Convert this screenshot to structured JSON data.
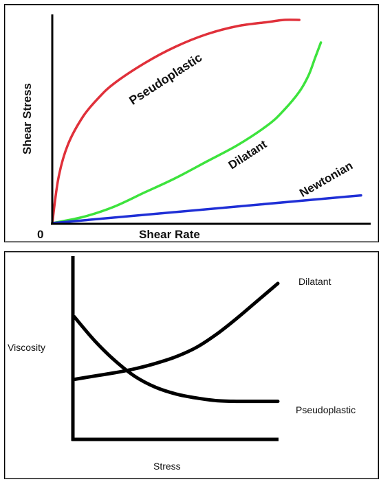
{
  "chart_data": [
    {
      "type": "line",
      "xlabel": "Shear Rate",
      "ylabel": "Shear Stress",
      "origin_label": "0",
      "x_range": [
        0,
        100
      ],
      "y_range": [
        0,
        100
      ],
      "grid": false,
      "legend": "none (curves labeled inline)",
      "series": [
        {
          "name": "Pseudoplastic",
          "color": "#e0303a",
          "x": [
            0,
            2,
            5,
            10,
            15,
            20,
            30,
            40,
            50,
            60,
            70,
            75,
            80
          ],
          "y": [
            0,
            22,
            38,
            52,
            61,
            68,
            78,
            86,
            92,
            96,
            98,
            99,
            99
          ]
        },
        {
          "name": "Dilatant",
          "color": "#3de33d",
          "x": [
            0,
            10,
            20,
            30,
            40,
            50,
            60,
            70,
            75,
            80,
            83,
            85,
            87
          ],
          "y": [
            0,
            3,
            8,
            15,
            22,
            30,
            38,
            48,
            55,
            64,
            72,
            80,
            88
          ]
        },
        {
          "name": "Newtonian",
          "color": "#1f2fd6",
          "x": [
            0,
            100
          ],
          "y": [
            0,
            13.5
          ]
        }
      ]
    },
    {
      "type": "line",
      "xlabel": "Stress",
      "ylabel": "Viscosity",
      "x_range": [
        0,
        100
      ],
      "y_range": [
        0,
        100
      ],
      "grid": false,
      "legend": "none (curves labeled at right end)",
      "series": [
        {
          "name": "Pseudoplastic",
          "color": "#000000",
          "x": [
            0,
            10,
            20,
            30,
            40,
            50,
            60,
            70,
            80,
            90,
            100
          ],
          "y": [
            73,
            55,
            40,
            28,
            20,
            15,
            12,
            10,
            9.5,
            9.5,
            9.5
          ]
        },
        {
          "name": "Dilatant",
          "color": "#000000",
          "x": [
            0,
            10,
            20,
            30,
            40,
            50,
            60,
            70,
            80,
            90,
            100
          ],
          "y": [
            26,
            28.5,
            31,
            34,
            38,
            43,
            50,
            60,
            72,
            85,
            98
          ]
        }
      ]
    }
  ]
}
